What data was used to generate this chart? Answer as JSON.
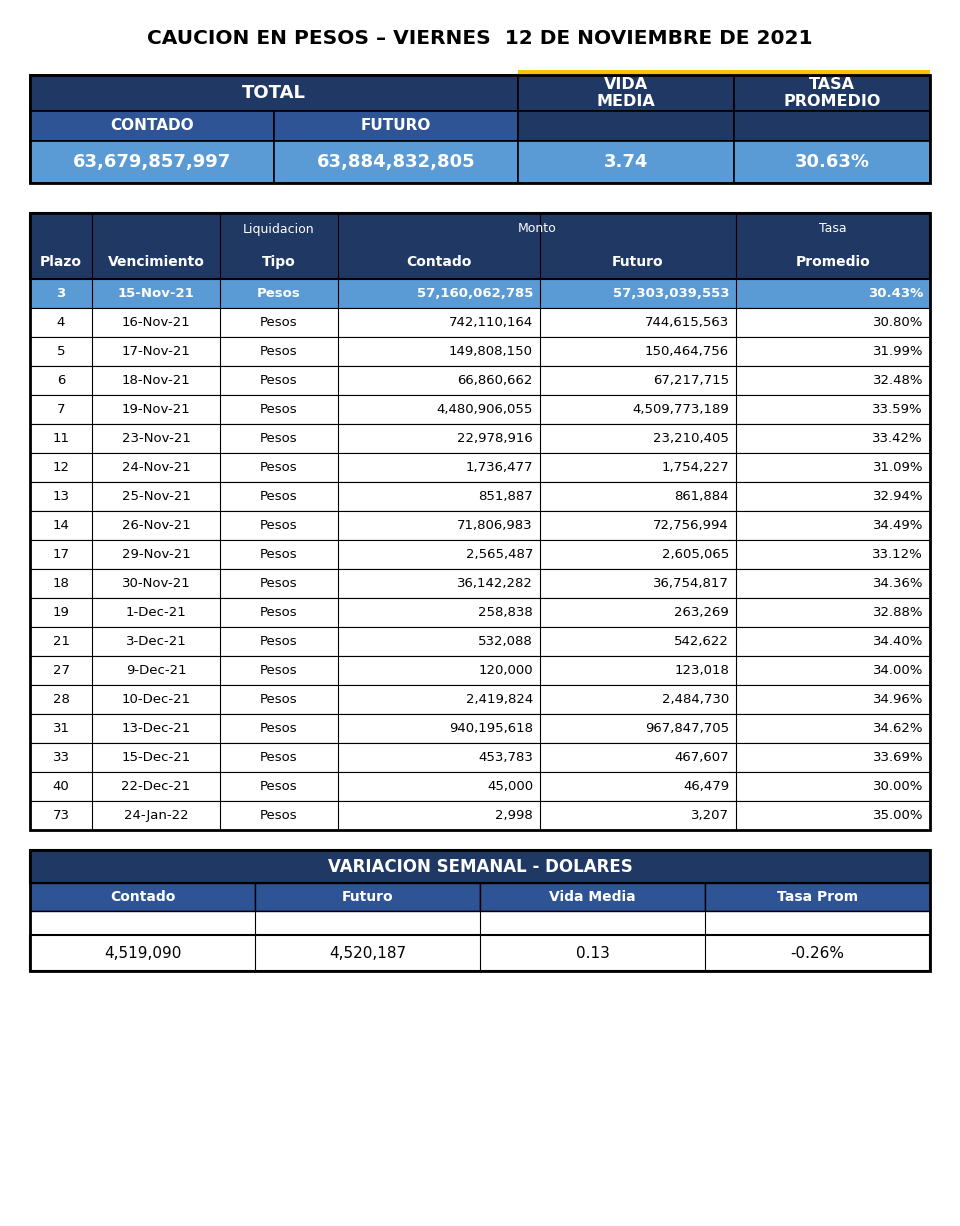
{
  "title": "CAUCION EN PESOS – VIERNES  12 DE NOVIEMBRE DE 2021",
  "summary_values": [
    "63,679,857,997",
    "63,884,832,805",
    "3.74",
    "30.63%"
  ],
  "main_data": [
    [
      "3",
      "15-Nov-21",
      "Pesos",
      "57,160,062,785",
      "57,303,039,553",
      "30.43%"
    ],
    [
      "4",
      "16-Nov-21",
      "Pesos",
      "742,110,164",
      "744,615,563",
      "30.80%"
    ],
    [
      "5",
      "17-Nov-21",
      "Pesos",
      "149,808,150",
      "150,464,756",
      "31.99%"
    ],
    [
      "6",
      "18-Nov-21",
      "Pesos",
      "66,860,662",
      "67,217,715",
      "32.48%"
    ],
    [
      "7",
      "19-Nov-21",
      "Pesos",
      "4,480,906,055",
      "4,509,773,189",
      "33.59%"
    ],
    [
      "11",
      "23-Nov-21",
      "Pesos",
      "22,978,916",
      "23,210,405",
      "33.42%"
    ],
    [
      "12",
      "24-Nov-21",
      "Pesos",
      "1,736,477",
      "1,754,227",
      "31.09%"
    ],
    [
      "13",
      "25-Nov-21",
      "Pesos",
      "851,887",
      "861,884",
      "32.94%"
    ],
    [
      "14",
      "26-Nov-21",
      "Pesos",
      "71,806,983",
      "72,756,994",
      "34.49%"
    ],
    [
      "17",
      "29-Nov-21",
      "Pesos",
      "2,565,487",
      "2,605,065",
      "33.12%"
    ],
    [
      "18",
      "30-Nov-21",
      "Pesos",
      "36,142,282",
      "36,754,817",
      "34.36%"
    ],
    [
      "19",
      "1-Dec-21",
      "Pesos",
      "258,838",
      "263,269",
      "32.88%"
    ],
    [
      "21",
      "3-Dec-21",
      "Pesos",
      "532,088",
      "542,622",
      "34.40%"
    ],
    [
      "27",
      "9-Dec-21",
      "Pesos",
      "120,000",
      "123,018",
      "34.00%"
    ],
    [
      "28",
      "10-Dec-21",
      "Pesos",
      "2,419,824",
      "2,484,730",
      "34.96%"
    ],
    [
      "31",
      "13-Dec-21",
      "Pesos",
      "940,195,618",
      "967,847,705",
      "34.62%"
    ],
    [
      "33",
      "15-Dec-21",
      "Pesos",
      "453,783",
      "467,607",
      "33.69%"
    ],
    [
      "40",
      "22-Dec-21",
      "Pesos",
      "45,000",
      "46,479",
      "30.00%"
    ],
    [
      "73",
      "24-Jan-22",
      "Pesos",
      "2,998",
      "3,207",
      "35.00%"
    ]
  ],
  "variacion_title": "VARIACION SEMANAL - DOLARES",
  "variacion_subheaders": [
    "Contado",
    "Futuro",
    "Vida Media",
    "Tasa Prom"
  ],
  "variacion_values": [
    "4,519,090",
    "4,520,187",
    "0.13",
    "-0.26%"
  ],
  "color_dark_blue": "#1F3864",
  "color_mid_blue": "#2F5496",
  "color_highlight_blue": "#5B9BD5",
  "color_gold": "#FFC000",
  "color_white": "#FFFFFF",
  "color_black": "#000000"
}
